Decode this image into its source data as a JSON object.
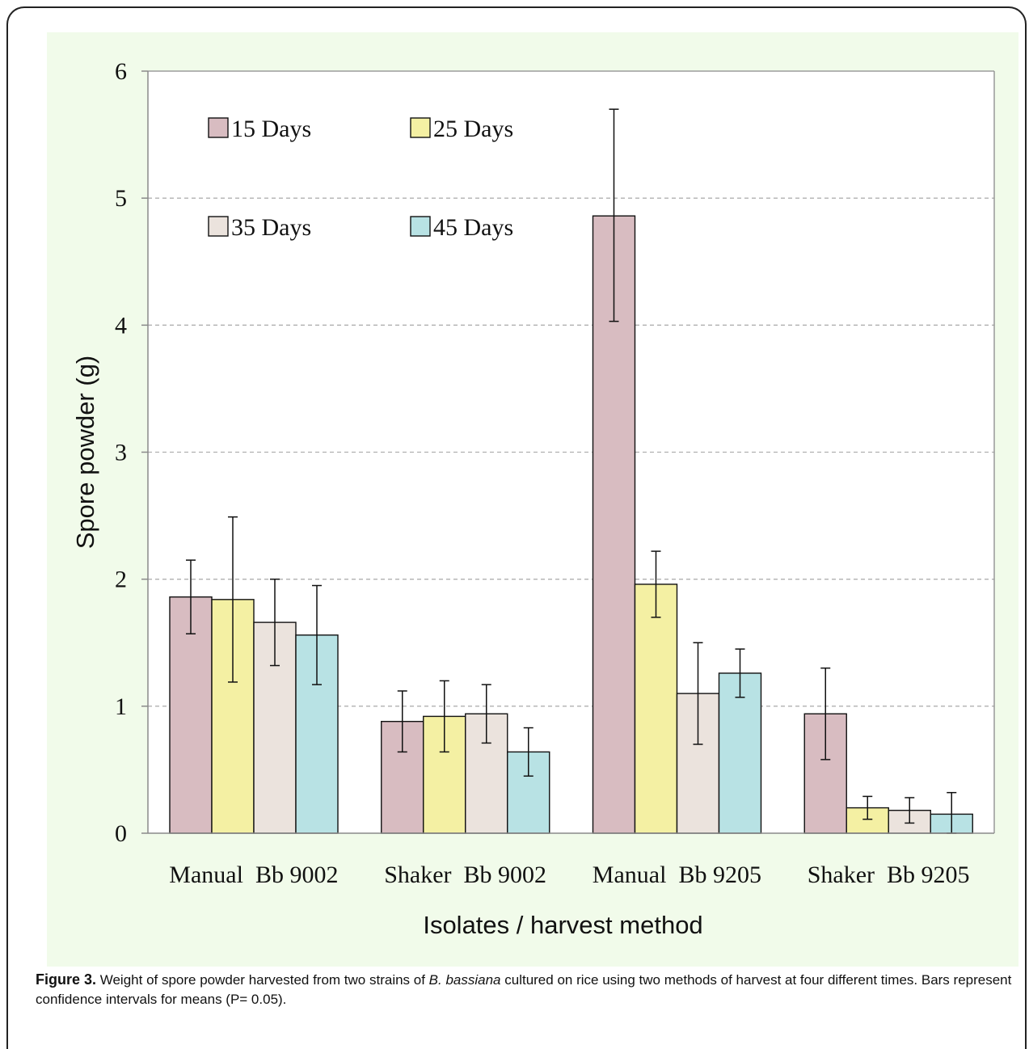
{
  "chart_data": {
    "type": "bar",
    "title": "",
    "xlabel": "Isolates / harvest method",
    "ylabel": "Spore powder (g)",
    "ylim": [
      0,
      6
    ],
    "yticks": [
      0,
      1,
      2,
      3,
      4,
      5,
      6
    ],
    "grid": "horizontal dashed",
    "legend_position": "top-left, inside",
    "categories": [
      "Manual  Bb 9002",
      "Shaker  Bb 9002",
      "Manual  Bb 9205",
      "Shaker  Bb 9205"
    ],
    "series": [
      {
        "name": "15 Days",
        "color": "#d8bcc1",
        "values": [
          1.86,
          0.88,
          4.86,
          0.94
        ],
        "error_low": [
          1.57,
          0.64,
          4.03,
          0.58
        ],
        "error_high": [
          2.15,
          1.12,
          5.7,
          1.3
        ]
      },
      {
        "name": "25 Days",
        "color": "#f4f0a3",
        "values": [
          1.84,
          0.92,
          1.96,
          0.2
        ],
        "error_low": [
          1.19,
          0.64,
          1.7,
          0.11
        ],
        "error_high": [
          2.49,
          1.2,
          2.22,
          0.29
        ]
      },
      {
        "name": "35 Days",
        "color": "#ebe3dd",
        "values": [
          1.66,
          0.94,
          1.1,
          0.18
        ],
        "error_low": [
          1.32,
          0.71,
          0.7,
          0.08
        ],
        "error_high": [
          2.0,
          1.17,
          1.5,
          0.28
        ]
      },
      {
        "name": "45 Days",
        "color": "#b8e2e4",
        "values": [
          1.56,
          0.64,
          1.26,
          0.15
        ],
        "error_low": [
          1.17,
          0.45,
          1.07,
          0.0
        ],
        "error_high": [
          1.95,
          0.83,
          1.45,
          0.32
        ]
      }
    ]
  },
  "caption": {
    "label": "Figure 3.",
    "text_before": " Weight of spore powder harvested from two strains of ",
    "species": "B. bassiana",
    "text_after": " cultured on rice using two methods of harvest at four different times. Bars represent confidence intervals for means (P= 0.05)."
  }
}
